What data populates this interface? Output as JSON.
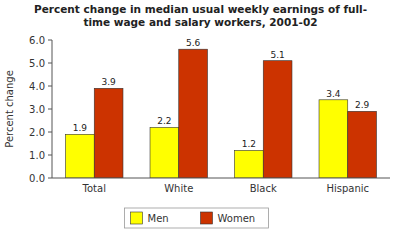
{
  "chart_data": {
    "type": "bar",
    "title": "Percent change in median usual weekly earnings of full-\ntime wage and salary workers, 2001-02",
    "ylabel": "Percent change",
    "categories": [
      "Total",
      "White",
      "Black",
      "Hispanic"
    ],
    "series": [
      {
        "name": "Men",
        "color": "#FFFF00",
        "values": [
          1.9,
          2.2,
          1.2,
          3.4
        ]
      },
      {
        "name": "Women",
        "color": "#CC3300",
        "values": [
          3.9,
          5.6,
          5.1,
          2.9
        ]
      }
    ],
    "ylim": [
      0.0,
      6.0
    ],
    "yticks": [
      {
        "value": 0.0,
        "label": "0.0"
      },
      {
        "value": 1.0,
        "label": "1.0"
      },
      {
        "value": 2.0,
        "label": "2.0"
      },
      {
        "value": 3.0,
        "label": "3.0"
      },
      {
        "value": 4.0,
        "label": "4.0"
      },
      {
        "value": 5.0,
        "label": "5.0"
      },
      {
        "value": 6.0,
        "label": "6.0"
      }
    ],
    "data_labels": true,
    "grid": false,
    "legend": "bottom"
  }
}
